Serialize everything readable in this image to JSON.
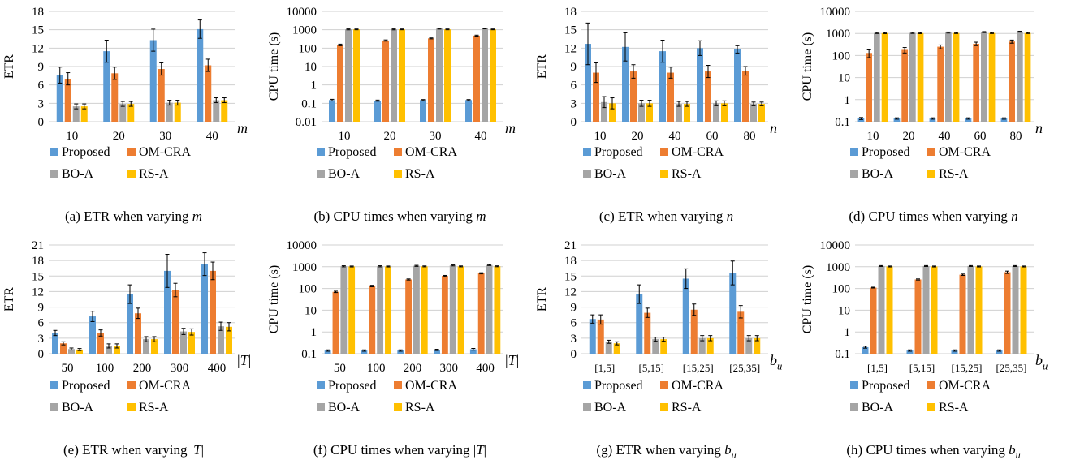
{
  "figure": {
    "colors": {
      "Proposed": "#5b9bd5",
      "OM-CRA": "#ed7d31",
      "BO-A": "#a5a5a5",
      "RS-A": "#ffc000",
      "axis": "#d0d0d0",
      "text": "#000000"
    }
  },
  "chart_data": [
    {
      "type": "bar",
      "id": "a",
      "caption": "(a) ETR when varying m",
      "ylabel": "ETR",
      "xvar": "m",
      "scale": "linear",
      "yticks": [
        0,
        3,
        6,
        9,
        12,
        15,
        18
      ],
      "ylim": [
        0,
        18
      ],
      "categories": [
        "10",
        "20",
        "30",
        "40"
      ],
      "series": [
        {
          "name": "Proposed",
          "values": [
            7.6,
            11.5,
            13.3,
            15.1
          ],
          "errors": [
            1.3,
            1.8,
            1.8,
            1.5
          ]
        },
        {
          "name": "OM-CRA",
          "values": [
            7.0,
            7.9,
            8.6,
            9.2
          ],
          "errors": [
            1.0,
            1.0,
            1.0,
            1.0
          ]
        },
        {
          "name": "BO-A",
          "values": [
            2.5,
            2.9,
            3.1,
            3.5
          ],
          "errors": [
            0.4,
            0.4,
            0.4,
            0.4
          ]
        },
        {
          "name": "RS-A",
          "values": [
            2.5,
            2.9,
            3.1,
            3.5
          ],
          "errors": [
            0.4,
            0.4,
            0.4,
            0.4
          ]
        }
      ],
      "legend": "bottom"
    },
    {
      "type": "bar",
      "id": "b",
      "caption": "(b) CPU times when varying m",
      "ylabel": "CPU time (s)",
      "xvar": "m",
      "scale": "log",
      "yticks": [
        "0.01",
        "0.1",
        "1",
        "10",
        "100",
        "1000",
        "10000"
      ],
      "ylim": [
        0.01,
        10000
      ],
      "categories": [
        "10",
        "20",
        "30",
        "40"
      ],
      "series": [
        {
          "name": "Proposed",
          "values": [
            0.15,
            0.14,
            0.15,
            0.15
          ],
          "errors": [
            0.015,
            0.01,
            0.01,
            0.01
          ]
        },
        {
          "name": "OM-CRA",
          "values": [
            150,
            260,
            340,
            480
          ],
          "errors": [
            15,
            20,
            20,
            30
          ]
        },
        {
          "name": "BO-A",
          "values": [
            1050,
            1050,
            1150,
            1180
          ],
          "errors": [
            60,
            60,
            60,
            60
          ]
        },
        {
          "name": "RS-A",
          "values": [
            1050,
            1050,
            1050,
            1050
          ],
          "errors": [
            50,
            50,
            50,
            50
          ]
        }
      ],
      "legend": "bottom"
    },
    {
      "type": "bar",
      "id": "c",
      "caption": "(c) ETR when varying n",
      "ylabel": "ETR",
      "xvar": "n",
      "scale": "linear",
      "yticks": [
        0,
        3,
        6,
        9,
        12,
        15,
        18
      ],
      "ylim": [
        0,
        18
      ],
      "categories": [
        "10",
        "20",
        "40",
        "60",
        "80"
      ],
      "series": [
        {
          "name": "Proposed",
          "values": [
            12.7,
            12.2,
            11.5,
            12.0,
            11.8
          ],
          "errors": [
            3.4,
            2.3,
            1.8,
            1.2,
            0.6
          ]
        },
        {
          "name": "OM-CRA",
          "values": [
            8.0,
            8.2,
            8.0,
            8.2,
            8.3
          ],
          "errors": [
            1.6,
            1.1,
            0.9,
            1.0,
            0.7
          ]
        },
        {
          "name": "BO-A",
          "values": [
            3.2,
            3.0,
            2.9,
            3.0,
            2.9
          ],
          "errors": [
            0.9,
            0.5,
            0.4,
            0.4,
            0.3
          ]
        },
        {
          "name": "RS-A",
          "values": [
            3.0,
            3.0,
            2.9,
            3.0,
            2.9
          ],
          "errors": [
            0.9,
            0.5,
            0.4,
            0.4,
            0.3
          ]
        }
      ],
      "legend": "bottom"
    },
    {
      "type": "bar",
      "id": "d",
      "caption": "(d) CPU times when varying n",
      "ylabel": "CPU time (s)",
      "xvar": "n",
      "scale": "log",
      "yticks": [
        "0.1",
        "1",
        "10",
        "100",
        "1000",
        "10000"
      ],
      "ylim": [
        0.1,
        10000
      ],
      "categories": [
        "10",
        "20",
        "40",
        "60",
        "80"
      ],
      "series": [
        {
          "name": "Proposed",
          "values": [
            0.14,
            0.14,
            0.14,
            0.14,
            0.14
          ],
          "errors": [
            0.015,
            0.01,
            0.01,
            0.01,
            0.01
          ]
        },
        {
          "name": "OM-CRA",
          "values": [
            130,
            180,
            250,
            340,
            430
          ],
          "errors": [
            50,
            50,
            50,
            60,
            70
          ]
        },
        {
          "name": "BO-A",
          "values": [
            1050,
            1060,
            1100,
            1150,
            1200
          ],
          "errors": [
            60,
            60,
            60,
            60,
            60
          ]
        },
        {
          "name": "RS-A",
          "values": [
            1030,
            1030,
            1040,
            1040,
            1040
          ],
          "errors": [
            50,
            50,
            50,
            50,
            50
          ]
        }
      ],
      "legend": "bottom"
    },
    {
      "type": "bar",
      "id": "e",
      "caption": "(e) ETR when varying |T|",
      "ylabel": "ETR",
      "xvar": "|T|",
      "scale": "linear",
      "yticks": [
        0,
        3,
        6,
        9,
        12,
        15,
        18,
        21
      ],
      "ylim": [
        0,
        21
      ],
      "categories": [
        "50",
        "100",
        "200",
        "300",
        "400"
      ],
      "series": [
        {
          "name": "Proposed",
          "values": [
            4.0,
            7.2,
            11.5,
            16.0,
            17.3
          ],
          "errors": [
            0.5,
            1.0,
            1.8,
            3.2,
            2.2
          ]
        },
        {
          "name": "OM-CRA",
          "values": [
            2.0,
            4.0,
            7.8,
            12.3,
            16.0
          ],
          "errors": [
            0.3,
            0.6,
            1.0,
            1.3,
            1.7
          ]
        },
        {
          "name": "BO-A",
          "values": [
            0.9,
            1.5,
            2.8,
            4.3,
            5.3
          ],
          "errors": [
            0.2,
            0.4,
            0.5,
            0.6,
            0.8
          ]
        },
        {
          "name": "RS-A",
          "values": [
            0.8,
            1.5,
            2.8,
            4.2,
            5.2
          ],
          "errors": [
            0.2,
            0.4,
            0.5,
            0.6,
            0.8
          ]
        }
      ],
      "legend": "bottom"
    },
    {
      "type": "bar",
      "id": "f",
      "caption": "(f) CPU times when varying |T|",
      "ylabel": "CPU time (s)",
      "xvar": "|T|",
      "scale": "log",
      "yticks": [
        "0.1",
        "1",
        "10",
        "100",
        "1000",
        "10000"
      ],
      "ylim": [
        0.1,
        10000
      ],
      "categories": [
        "50",
        "100",
        "200",
        "300",
        "400"
      ],
      "series": [
        {
          "name": "Proposed",
          "values": [
            0.14,
            0.14,
            0.14,
            0.15,
            0.16
          ],
          "errors": [
            0.01,
            0.01,
            0.01,
            0.01,
            0.015
          ]
        },
        {
          "name": "OM-CRA",
          "values": [
            70,
            130,
            260,
            380,
            500
          ],
          "errors": [
            5,
            10,
            15,
            20,
            30
          ]
        },
        {
          "name": "BO-A",
          "values": [
            1050,
            1050,
            1100,
            1150,
            1200
          ],
          "errors": [
            60,
            60,
            60,
            60,
            60
          ]
        },
        {
          "name": "RS-A",
          "values": [
            1030,
            1030,
            1040,
            1040,
            1050
          ],
          "errors": [
            50,
            50,
            50,
            50,
            50
          ]
        }
      ],
      "legend": "bottom"
    },
    {
      "type": "bar",
      "id": "g",
      "caption": "(g) ETR when varying b_u",
      "ylabel": "ETR",
      "xvar": "b_u",
      "scale": "linear",
      "yticks": [
        0,
        3,
        6,
        9,
        12,
        15,
        18,
        21
      ],
      "ylim": [
        0,
        21
      ],
      "categories": [
        "[1,5]",
        "[5,15]",
        "[15,25]",
        "[25,35]"
      ],
      "series": [
        {
          "name": "Proposed",
          "values": [
            6.7,
            11.5,
            14.5,
            15.6
          ],
          "errors": [
            0.8,
            1.8,
            1.9,
            2.3
          ]
        },
        {
          "name": "OM-CRA",
          "values": [
            6.6,
            7.9,
            8.5,
            8.1
          ],
          "errors": [
            0.9,
            0.9,
            1.1,
            1.2
          ]
        },
        {
          "name": "BO-A",
          "values": [
            2.3,
            2.8,
            3.0,
            3.0
          ],
          "errors": [
            0.3,
            0.4,
            0.5,
            0.5
          ]
        },
        {
          "name": "RS-A",
          "values": [
            2.0,
            2.8,
            3.0,
            3.0
          ],
          "errors": [
            0.3,
            0.4,
            0.5,
            0.5
          ]
        }
      ],
      "legend": "bottom"
    },
    {
      "type": "bar",
      "id": "h",
      "caption": "(h) CPU times when varying b_u",
      "ylabel": "CPU time (s)",
      "xvar": "b_u",
      "scale": "log",
      "yticks": [
        "0.1",
        "1",
        "10",
        "100",
        "1000",
        "10000"
      ],
      "ylim": [
        0.1,
        10000
      ],
      "categories": [
        "[1,5]",
        "[5,15]",
        "[15,25]",
        "[25,35]"
      ],
      "series": [
        {
          "name": "Proposed",
          "values": [
            0.2,
            0.14,
            0.14,
            0.14
          ],
          "errors": [
            0.02,
            0.01,
            0.01,
            0.01
          ]
        },
        {
          "name": "OM-CRA",
          "values": [
            110,
            260,
            430,
            560
          ],
          "errors": [
            5,
            15,
            30,
            70
          ]
        },
        {
          "name": "BO-A",
          "values": [
            1080,
            1080,
            1080,
            1080
          ],
          "errors": [
            50,
            50,
            50,
            50
          ]
        },
        {
          "name": "RS-A",
          "values": [
            1030,
            1030,
            1030,
            1030
          ],
          "errors": [
            50,
            50,
            50,
            50
          ]
        }
      ],
      "legend": "bottom"
    }
  ]
}
